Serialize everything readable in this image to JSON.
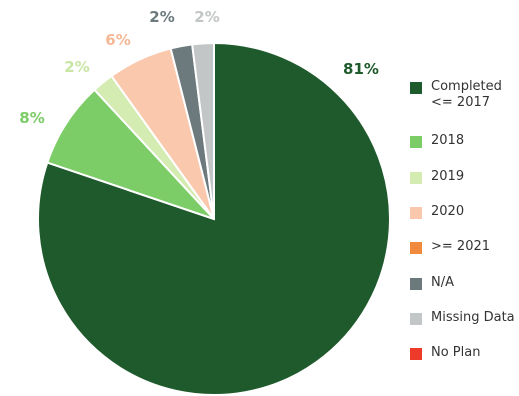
{
  "chart_data": {
    "type": "pie",
    "title": "",
    "start_angle": "12 o'clock, clockwise",
    "slices": [
      {
        "label": "Completed <= 2017",
        "value": 81,
        "text": "81%",
        "color": "#1f5a2c",
        "label_color": "#1f5a2c"
      },
      {
        "label": "2018",
        "value": 8,
        "text": "8%",
        "color": "#7ccc67",
        "label_color": "#7ccc67"
      },
      {
        "label": "2019",
        "value": 2,
        "text": "2%",
        "color": "#d4ebb1",
        "label_color": "#c8e6a4"
      },
      {
        "label": "2020",
        "value": 6,
        "text": "6%",
        "color": "#fac9ad",
        "label_color": "#f5b896"
      },
      {
        "label": ">= 2021",
        "value": 0,
        "text": "",
        "color": "#f08a3c",
        "label_color": "#f08a3c"
      },
      {
        "label": "N/A",
        "value": 2,
        "text": "2%",
        "color": "#6c7a7e",
        "label_color": "#6c7a7e"
      },
      {
        "label": "Missing Data",
        "value": 2,
        "text": "2%",
        "color": "#c3c6c6",
        "label_color": "#c3c6c6"
      },
      {
        "label": "No Plan",
        "value": 0,
        "text": "",
        "color": "#ee3a2a",
        "label_color": "#ee3a2a"
      }
    ],
    "legend": {
      "placement": "right",
      "items": [
        {
          "label": "Completed\n<= 2017",
          "color": "#1f5a2c"
        },
        {
          "label": "2018",
          "color": "#7ccc67"
        },
        {
          "label": "2019",
          "color": "#d4ebb1"
        },
        {
          "label": "2020",
          "color": "#fac9ad"
        },
        {
          "label": ">= 2021",
          "color": "#f08a3c"
        },
        {
          "label": "N/A",
          "color": "#6c7a7e"
        },
        {
          "label": "Missing Data",
          "color": "#c3c6c6"
        },
        {
          "label": "No Plan",
          "color": "#ee3a2a"
        }
      ]
    }
  }
}
